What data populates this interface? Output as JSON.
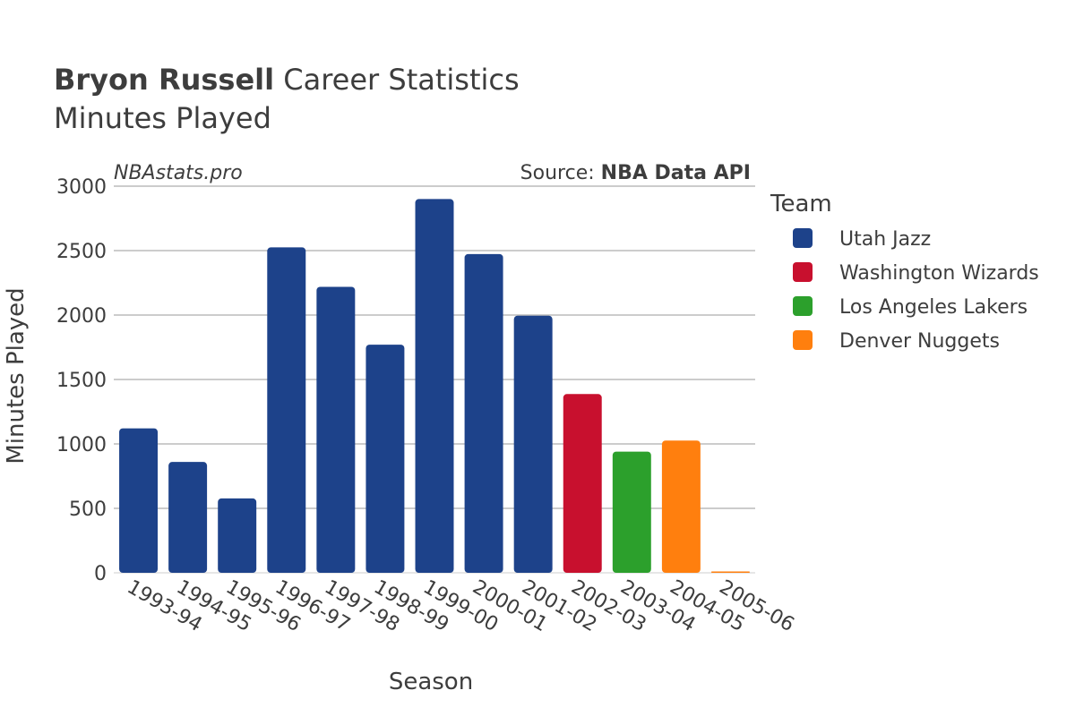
{
  "chart_data": {
    "type": "bar",
    "title": {
      "player": "Bryon Russell",
      "rest": "Career Statistics"
    },
    "subtitle": "Minutes Played",
    "watermark": "NBAstats.pro",
    "source": {
      "prefix": "Source:",
      "name": "NBA Data API"
    },
    "xlabel": "Season",
    "ylabel": "Minutes Played",
    "ylim": [
      0,
      3000
    ],
    "yticks": [
      0,
      500,
      1000,
      1500,
      2000,
      2500,
      3000
    ],
    "grid": true,
    "legend": {
      "title": "Team",
      "placement": "right",
      "items": [
        {
          "name": "Utah Jazz",
          "color": "#1d428a"
        },
        {
          "name": "Washington Wizards",
          "color": "#c8102e"
        },
        {
          "name": "Los Angeles Lakers",
          "color": "#2ca02c"
        },
        {
          "name": "Denver Nuggets",
          "color": "#ff7f0e"
        }
      ]
    },
    "categories": [
      "1993-94",
      "1994-95",
      "1995-96",
      "1996-97",
      "1997-98",
      "1998-99",
      "1999-00",
      "2000-01",
      "2001-02",
      "2002-03",
      "2003-04",
      "2004-05",
      "2005-06"
    ],
    "values": [
      1121,
      860,
      577,
      2525,
      2219,
      1770,
      2900,
      2473,
      1995,
      1387,
      940,
      1026,
      10
    ],
    "teams": [
      "Utah Jazz",
      "Utah Jazz",
      "Utah Jazz",
      "Utah Jazz",
      "Utah Jazz",
      "Utah Jazz",
      "Utah Jazz",
      "Utah Jazz",
      "Utah Jazz",
      "Washington Wizards",
      "Los Angeles Lakers",
      "Denver Nuggets",
      "Denver Nuggets"
    ]
  }
}
